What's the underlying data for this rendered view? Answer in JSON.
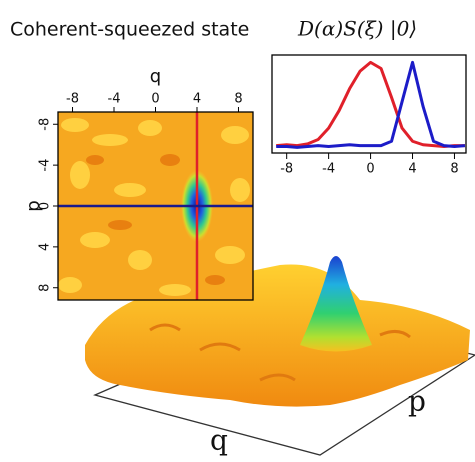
{
  "title": "Coherent-squeezed state",
  "formula": "D(α)S(ξ) |0⟩",
  "chart_data": [
    {
      "type": "heatmap",
      "xlabel": "q",
      "ylabel": "p",
      "xlim": [
        -9.4,
        9.4
      ],
      "ylim": [
        -9.2,
        9.2
      ],
      "y_inverted": true,
      "xticks": [
        -8,
        -4,
        0,
        4,
        8
      ],
      "yticks": [
        -8,
        -4,
        0,
        4,
        8
      ],
      "q_cut": 4,
      "p_cut": 0,
      "q_cut_color": "#e0202a",
      "p_cut_color": "#1a1a8c"
    },
    {
      "type": "line",
      "x": [
        -9,
        -8,
        -7,
        -6,
        -5,
        -4,
        -3,
        -2,
        -1,
        0,
        1,
        2,
        3,
        4,
        5,
        6,
        7,
        8,
        9
      ],
      "series": [
        {
          "color": "#e0202a",
          "values": [
            0.05,
            0.06,
            0.05,
            0.07,
            0.12,
            0.25,
            0.45,
            0.7,
            0.9,
            1.0,
            0.93,
            0.6,
            0.25,
            0.1,
            0.06,
            0.05,
            0.04,
            0.05,
            0.05
          ]
        },
        {
          "color": "#1c1cc8",
          "values": [
            0.04,
            0.04,
            0.03,
            0.04,
            0.05,
            0.04,
            0.05,
            0.06,
            0.05,
            0.05,
            0.05,
            0.1,
            0.55,
            1.0,
            0.5,
            0.1,
            0.05,
            0.04,
            0.05
          ]
        }
      ],
      "xlim": [
        -9.4,
        9.1
      ],
      "ylim": [
        0,
        1.05
      ],
      "xticks": [
        -8,
        -4,
        0,
        4,
        8
      ]
    },
    {
      "type": "surface",
      "xlabel": "q",
      "ylabel": "p"
    }
  ]
}
